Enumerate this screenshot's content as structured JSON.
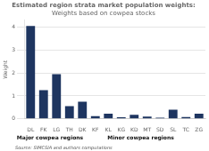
{
  "chart_data": {
    "type": "bar",
    "title": "Estimated region strata market population weights:",
    "subtitle": "Weights based on cowpea stocks",
    "y_label": "Weight",
    "categories": [
      "DL",
      "FK",
      "LG",
      "TH",
      "DK",
      "KF",
      "KL",
      "KG",
      "KD",
      "MT",
      "SD",
      "SL",
      "TC",
      "ZG"
    ],
    "values": [
      4.05,
      1.25,
      1.95,
      0.55,
      0.75,
      0.12,
      0.22,
      0.07,
      0.18,
      0.1,
      0.05,
      0.4,
      0.08,
      0.22
    ],
    "color": "#1e3560",
    "ylim": [
      0,
      4.3
    ],
    "yticks": [
      0,
      1,
      2,
      3,
      4
    ],
    "grid": true,
    "annotations": [
      {
        "text": "Major cowpea regions",
        "from": "DL",
        "to": "TH"
      },
      {
        "text": "Minor cowpea regions",
        "from": "DK",
        "to": "ZG"
      }
    ],
    "source": "Source: SIMCSIA and authors computations"
  }
}
